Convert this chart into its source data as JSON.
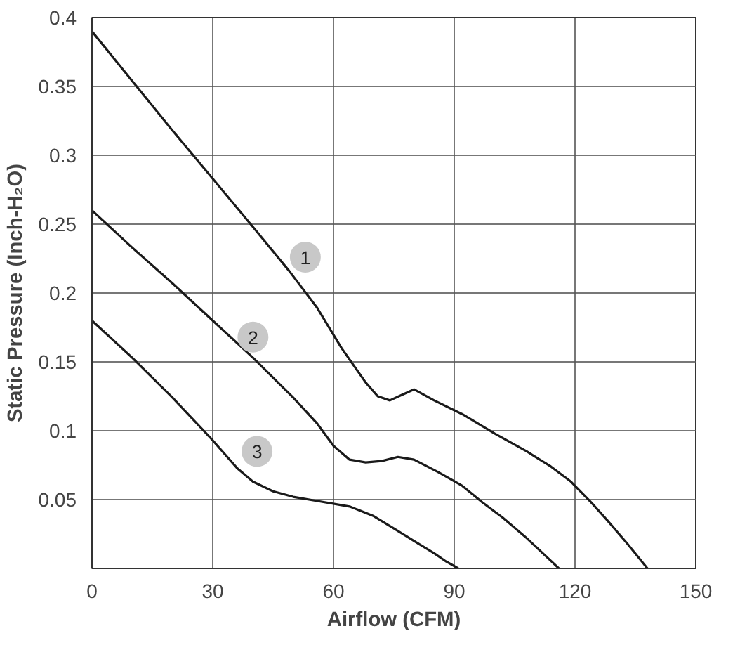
{
  "chart_data": {
    "type": "line",
    "xlabel": "Airflow (CFM)",
    "ylabel": "Static Pressure (Inch-H₂O)",
    "xlim": [
      0,
      150
    ],
    "ylim": [
      0,
      0.4
    ],
    "xticks": [
      0,
      30,
      60,
      90,
      120,
      150
    ],
    "yticks": [
      {
        "value": 0,
        "label": null
      },
      0.05,
      0.1,
      0.15,
      0.2,
      0.25,
      0.3,
      0.35,
      0.4
    ],
    "grid": true,
    "line_style": "solid",
    "marker": "none",
    "series": [
      {
        "color": "#1a1a1a",
        "x": [
          0,
          10,
          20,
          30,
          40,
          49,
          56,
          62,
          68,
          71,
          74,
          77,
          80,
          85,
          92,
          100,
          108,
          114,
          119,
          124,
          128,
          133,
          138
        ],
        "values": [
          0.39,
          0.354,
          0.318,
          0.283,
          0.248,
          0.216,
          0.189,
          0.16,
          0.135,
          0.125,
          0.122,
          0.126,
          0.13,
          0.122,
          0.112,
          0.098,
          0.085,
          0.074,
          0.063,
          0.048,
          0.035,
          0.018,
          0
        ]
      },
      {
        "color": "#1a1a1a",
        "x": [
          0,
          10,
          20,
          30,
          40,
          50,
          56,
          60,
          64,
          68,
          72,
          76,
          80,
          86,
          92,
          97,
          102,
          108,
          112,
          116
        ],
        "values": [
          0.26,
          0.233,
          0.207,
          0.18,
          0.153,
          0.124,
          0.105,
          0.089,
          0.079,
          0.077,
          0.078,
          0.081,
          0.079,
          0.07,
          0.06,
          0.048,
          0.037,
          0.022,
          0.011,
          0
        ]
      },
      {
        "color": "#1a1a1a",
        "x": [
          0,
          10,
          20,
          30,
          36,
          40,
          45,
          50,
          56,
          64,
          70,
          75,
          80,
          85,
          88,
          91
        ],
        "values": [
          0.18,
          0.153,
          0.124,
          0.093,
          0.073,
          0.063,
          0.056,
          0.052,
          0.049,
          0.045,
          0.038,
          0.029,
          0.02,
          0.011,
          0.005,
          0
        ]
      }
    ],
    "annotations": [
      {
        "text": "1",
        "x": 53,
        "y": 0.226
      },
      {
        "text": "2",
        "x": 40,
        "y": 0.168
      },
      {
        "text": "3",
        "x": 41,
        "y": 0.085
      }
    ]
  }
}
